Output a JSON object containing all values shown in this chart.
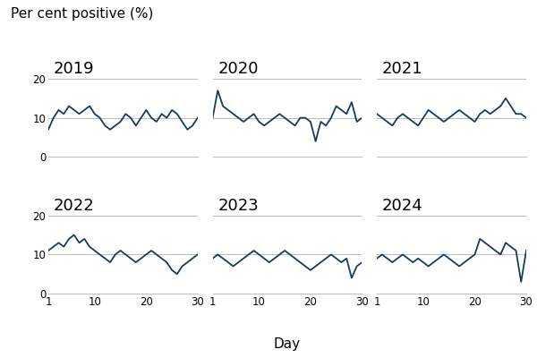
{
  "title": "Per cent positive (%)",
  "xlabel": "Day",
  "years": [
    "2019",
    "2020",
    "2021",
    "2022",
    "2023",
    "2024"
  ],
  "line_color": "#1a3a5c",
  "line_width": 1.3,
  "ylim": [
    0,
    20
  ],
  "yticks": [
    0,
    10,
    20
  ],
  "xticks": [
    1,
    10,
    20,
    30
  ],
  "grid_color": "#bbbbbb",
  "background_color": "#ffffff",
  "series": {
    "2019": [
      7,
      10,
      12,
      11,
      13,
      12,
      11,
      12,
      13,
      11,
      10,
      8,
      7,
      8,
      9,
      11,
      10,
      8,
      10,
      12,
      10,
      9,
      11,
      10,
      12,
      11,
      9,
      7,
      8,
      10
    ],
    "2020": [
      10,
      17,
      13,
      12,
      11,
      10,
      9,
      10,
      11,
      9,
      8,
      9,
      10,
      11,
      10,
      9,
      8,
      10,
      10,
      9,
      4,
      9,
      8,
      10,
      13,
      12,
      11,
      14,
      9,
      10
    ],
    "2021": [
      11,
      10,
      9,
      8,
      10,
      11,
      10,
      9,
      8,
      10,
      12,
      11,
      10,
      9,
      10,
      11,
      12,
      11,
      10,
      9,
      11,
      12,
      11,
      12,
      13,
      15,
      13,
      11,
      11,
      10
    ],
    "2022": [
      11,
      12,
      13,
      12,
      14,
      15,
      13,
      14,
      12,
      11,
      10,
      9,
      8,
      10,
      11,
      10,
      9,
      8,
      9,
      10,
      11,
      10,
      9,
      8,
      6,
      5,
      7,
      8,
      9,
      10
    ],
    "2023": [
      9,
      10,
      9,
      8,
      7,
      8,
      9,
      10,
      11,
      10,
      9,
      8,
      9,
      10,
      11,
      10,
      9,
      8,
      7,
      6,
      7,
      8,
      9,
      10,
      9,
      8,
      9,
      4,
      7,
      8
    ],
    "2024": [
      9,
      10,
      9,
      8,
      9,
      10,
      9,
      8,
      9,
      8,
      7,
      8,
      9,
      10,
      9,
      8,
      7,
      8,
      9,
      10,
      14,
      13,
      12,
      11,
      10,
      13,
      12,
      11,
      3,
      11
    ]
  },
  "title_fontsize": 11,
  "year_fontsize": 13,
  "tick_fontsize": 8.5,
  "axis_label_fontsize": 11
}
